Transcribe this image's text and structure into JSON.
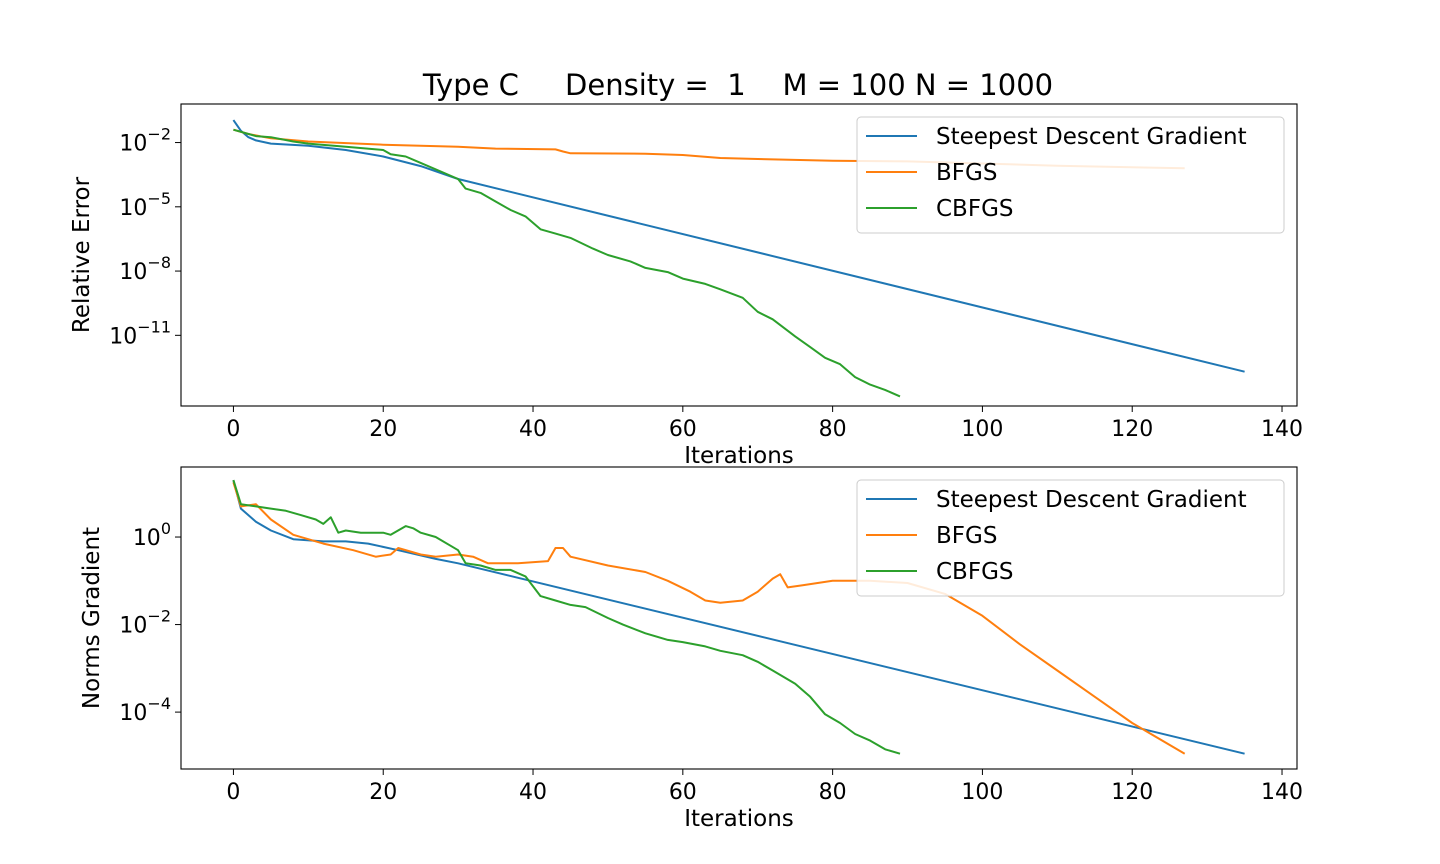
{
  "figure": {
    "title": "Type C     Density =  1    M = 100 N = 1000"
  },
  "colors": {
    "Steepest Descent Gradient": "#1f77b4",
    "BFGS": "#ff7f0e",
    "CBFGS": "#2ca02c"
  },
  "chart_data": [
    {
      "type": "line",
      "xlabel": "Iterations",
      "ylabel": "Relative Error",
      "yscale": "log",
      "xlim": [
        -7,
        142
      ],
      "ylim_log10": [
        -14.3,
        -0.2
      ],
      "xticks": [
        0,
        20,
        40,
        60,
        80,
        100,
        120,
        140
      ],
      "yticks_log10": [
        -2,
        -5,
        -8,
        -11
      ],
      "legend": "top-right",
      "grid": false,
      "series": [
        {
          "name": "Steepest Descent Gradient",
          "x": [
            0,
            1,
            2,
            3,
            5,
            10,
            15,
            20,
            25,
            30,
            135
          ],
          "y_log10": [
            -0.95,
            -1.45,
            -1.75,
            -1.9,
            -2.05,
            -2.15,
            -2.35,
            -2.65,
            -3.1,
            -3.7,
            -12.7
          ]
        },
        {
          "name": "BFGS",
          "x": [
            0,
            2,
            5,
            10,
            20,
            30,
            35,
            43,
            44,
            45,
            55,
            60,
            65,
            70,
            80,
            90,
            100,
            110,
            127
          ],
          "y_log10": [
            -1.4,
            -1.6,
            -1.8,
            -1.95,
            -2.1,
            -2.2,
            -2.28,
            -2.32,
            -2.42,
            -2.5,
            -2.52,
            -2.58,
            -2.72,
            -2.77,
            -2.85,
            -2.88,
            -2.98,
            -3.08,
            -3.2
          ]
        },
        {
          "name": "CBFGS",
          "x": [
            0,
            3,
            5,
            8,
            10,
            15,
            20,
            21,
            23,
            25,
            28,
            30,
            31,
            33,
            35,
            37,
            39,
            41,
            43,
            45,
            48,
            50,
            53,
            55,
            58,
            60,
            63,
            65,
            68,
            70,
            72,
            75,
            77,
            79,
            81,
            83,
            85,
            87,
            89
          ],
          "y_log10": [
            -1.4,
            -1.7,
            -1.75,
            -1.95,
            -2.05,
            -2.2,
            -2.35,
            -2.55,
            -2.65,
            -2.95,
            -3.4,
            -3.7,
            -4.15,
            -4.35,
            -4.75,
            -5.15,
            -5.45,
            -6.05,
            -6.25,
            -6.45,
            -6.95,
            -7.25,
            -7.55,
            -7.85,
            -8.05,
            -8.35,
            -8.6,
            -8.85,
            -9.25,
            -9.9,
            -10.25,
            -11.05,
            -11.55,
            -12.05,
            -12.35,
            -12.95,
            -13.3,
            -13.55,
            -13.85
          ]
        }
      ]
    },
    {
      "type": "line",
      "xlabel": "Iterations",
      "ylabel": "Norms Gradient",
      "yscale": "log",
      "xlim": [
        -7,
        142
      ],
      "ylim_log10": [
        -5.3,
        1.6
      ],
      "xticks": [
        0,
        20,
        40,
        60,
        80,
        100,
        120,
        140
      ],
      "yticks_log10": [
        0,
        -2,
        -4
      ],
      "legend": "top-right",
      "grid": false,
      "series": [
        {
          "name": "Steepest Descent Gradient",
          "x": [
            0,
            1,
            3,
            5,
            8,
            12,
            15,
            18,
            22,
            27,
            30,
            135
          ],
          "y_log10": [
            1.3,
            0.65,
            0.35,
            0.15,
            -0.05,
            -0.1,
            -0.1,
            -0.15,
            -0.3,
            -0.5,
            -0.6,
            -4.95
          ]
        },
        {
          "name": "BFGS",
          "x": [
            0,
            1,
            3,
            5,
            8,
            12,
            16,
            19,
            21,
            22,
            25,
            27,
            30,
            32,
            34,
            38,
            42,
            43,
            44,
            45,
            50,
            55,
            58,
            61,
            63,
            65,
            68,
            70,
            72,
            73,
            74,
            76,
            80,
            85,
            90,
            95,
            100,
            105,
            110,
            115,
            120,
            127
          ],
          "y_log10": [
            1.25,
            0.7,
            0.75,
            0.4,
            0.05,
            -0.15,
            -0.3,
            -0.45,
            -0.4,
            -0.25,
            -0.4,
            -0.45,
            -0.4,
            -0.45,
            -0.6,
            -0.6,
            -0.55,
            -0.25,
            -0.25,
            -0.45,
            -0.65,
            -0.8,
            -1.0,
            -1.25,
            -1.45,
            -1.5,
            -1.45,
            -1.25,
            -0.95,
            -0.85,
            -1.15,
            -1.1,
            -1.0,
            -1.0,
            -1.05,
            -1.3,
            -1.8,
            -2.45,
            -3.05,
            -3.65,
            -4.25,
            -4.95
          ]
        },
        {
          "name": "CBFGS",
          "x": [
            0,
            1,
            3,
            5,
            7,
            9,
            11,
            12,
            13,
            14,
            15,
            17,
            20,
            21,
            23,
            24,
            25,
            27,
            30,
            31,
            33,
            35,
            37,
            39,
            41,
            43,
            45,
            47,
            50,
            52,
            55,
            58,
            60,
            63,
            65,
            68,
            70,
            72,
            75,
            77,
            79,
            81,
            83,
            85,
            87,
            89
          ],
          "y_log10": [
            1.3,
            0.75,
            0.7,
            0.65,
            0.6,
            0.5,
            0.4,
            0.3,
            0.45,
            0.1,
            0.15,
            0.1,
            0.1,
            0.05,
            0.25,
            0.2,
            0.1,
            0.0,
            -0.3,
            -0.6,
            -0.65,
            -0.75,
            -0.75,
            -0.9,
            -1.35,
            -1.45,
            -1.55,
            -1.6,
            -1.85,
            -2.0,
            -2.2,
            -2.35,
            -2.4,
            -2.5,
            -2.6,
            -2.7,
            -2.85,
            -3.05,
            -3.35,
            -3.65,
            -4.05,
            -4.25,
            -4.5,
            -4.65,
            -4.85,
            -4.95
          ]
        }
      ]
    }
  ]
}
